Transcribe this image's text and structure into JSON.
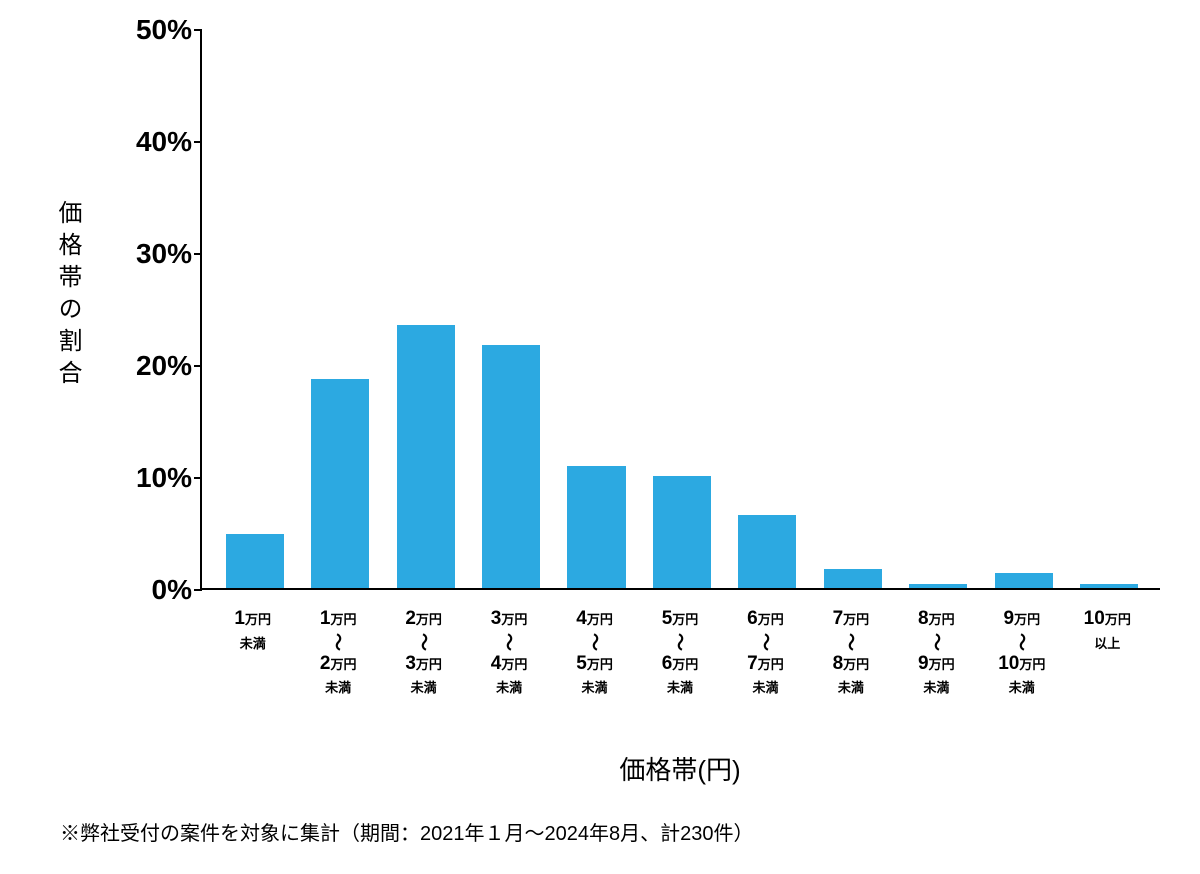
{
  "chart": {
    "type": "bar",
    "y_axis_label": "価格帯の割合",
    "x_axis_label": "価格帯(円)",
    "ylim": [
      0,
      50
    ],
    "ytick_step": 10,
    "ytick_suffix": "%",
    "bar_color": "#2ca9e1",
    "background_color": "#ffffff",
    "axis_color": "#000000",
    "text_color": "#000000",
    "bar_width_ratio": 0.68,
    "ytick_fontsize": 28,
    "axis_label_fontsize": 26,
    "xlabel_big_fontsize": 19,
    "xlabel_small_fontsize": 13,
    "values": [
      4.8,
      18.7,
      23.5,
      21.7,
      10.9,
      10.0,
      6.5,
      1.7,
      0.4,
      1.3,
      0.4
    ],
    "categories": [
      {
        "top_num": "1",
        "top_unit": "万円",
        "tilde": false,
        "bot_num": "",
        "bot_unit": "",
        "suffix": "未満"
      },
      {
        "top_num": "1",
        "top_unit": "万円",
        "tilde": true,
        "bot_num": "2",
        "bot_unit": "万円",
        "suffix": "未満"
      },
      {
        "top_num": "2",
        "top_unit": "万円",
        "tilde": true,
        "bot_num": "3",
        "bot_unit": "万円",
        "suffix": "未満"
      },
      {
        "top_num": "3",
        "top_unit": "万円",
        "tilde": true,
        "bot_num": "4",
        "bot_unit": "万円",
        "suffix": "未満"
      },
      {
        "top_num": "4",
        "top_unit": "万円",
        "tilde": true,
        "bot_num": "5",
        "bot_unit": "万円",
        "suffix": "未満"
      },
      {
        "top_num": "5",
        "top_unit": "万円",
        "tilde": true,
        "bot_num": "6",
        "bot_unit": "万円",
        "suffix": "未満"
      },
      {
        "top_num": "6",
        "top_unit": "万円",
        "tilde": true,
        "bot_num": "7",
        "bot_unit": "万円",
        "suffix": "未満"
      },
      {
        "top_num": "7",
        "top_unit": "万円",
        "tilde": true,
        "bot_num": "8",
        "bot_unit": "万円",
        "suffix": "未満"
      },
      {
        "top_num": "8",
        "top_unit": "万円",
        "tilde": true,
        "bot_num": "9",
        "bot_unit": "万円",
        "suffix": "未満"
      },
      {
        "top_num": "9",
        "top_unit": "万円",
        "tilde": true,
        "bot_num": "10",
        "bot_unit": "万円",
        "suffix": "未満"
      },
      {
        "top_num": "10",
        "top_unit": "万円",
        "tilde": false,
        "bot_num": "",
        "bot_unit": "",
        "suffix": "以上"
      }
    ]
  },
  "footnote": "※弊社受付の案件を対象に集計（期間：2021年１月～2024年8月、計230件）"
}
